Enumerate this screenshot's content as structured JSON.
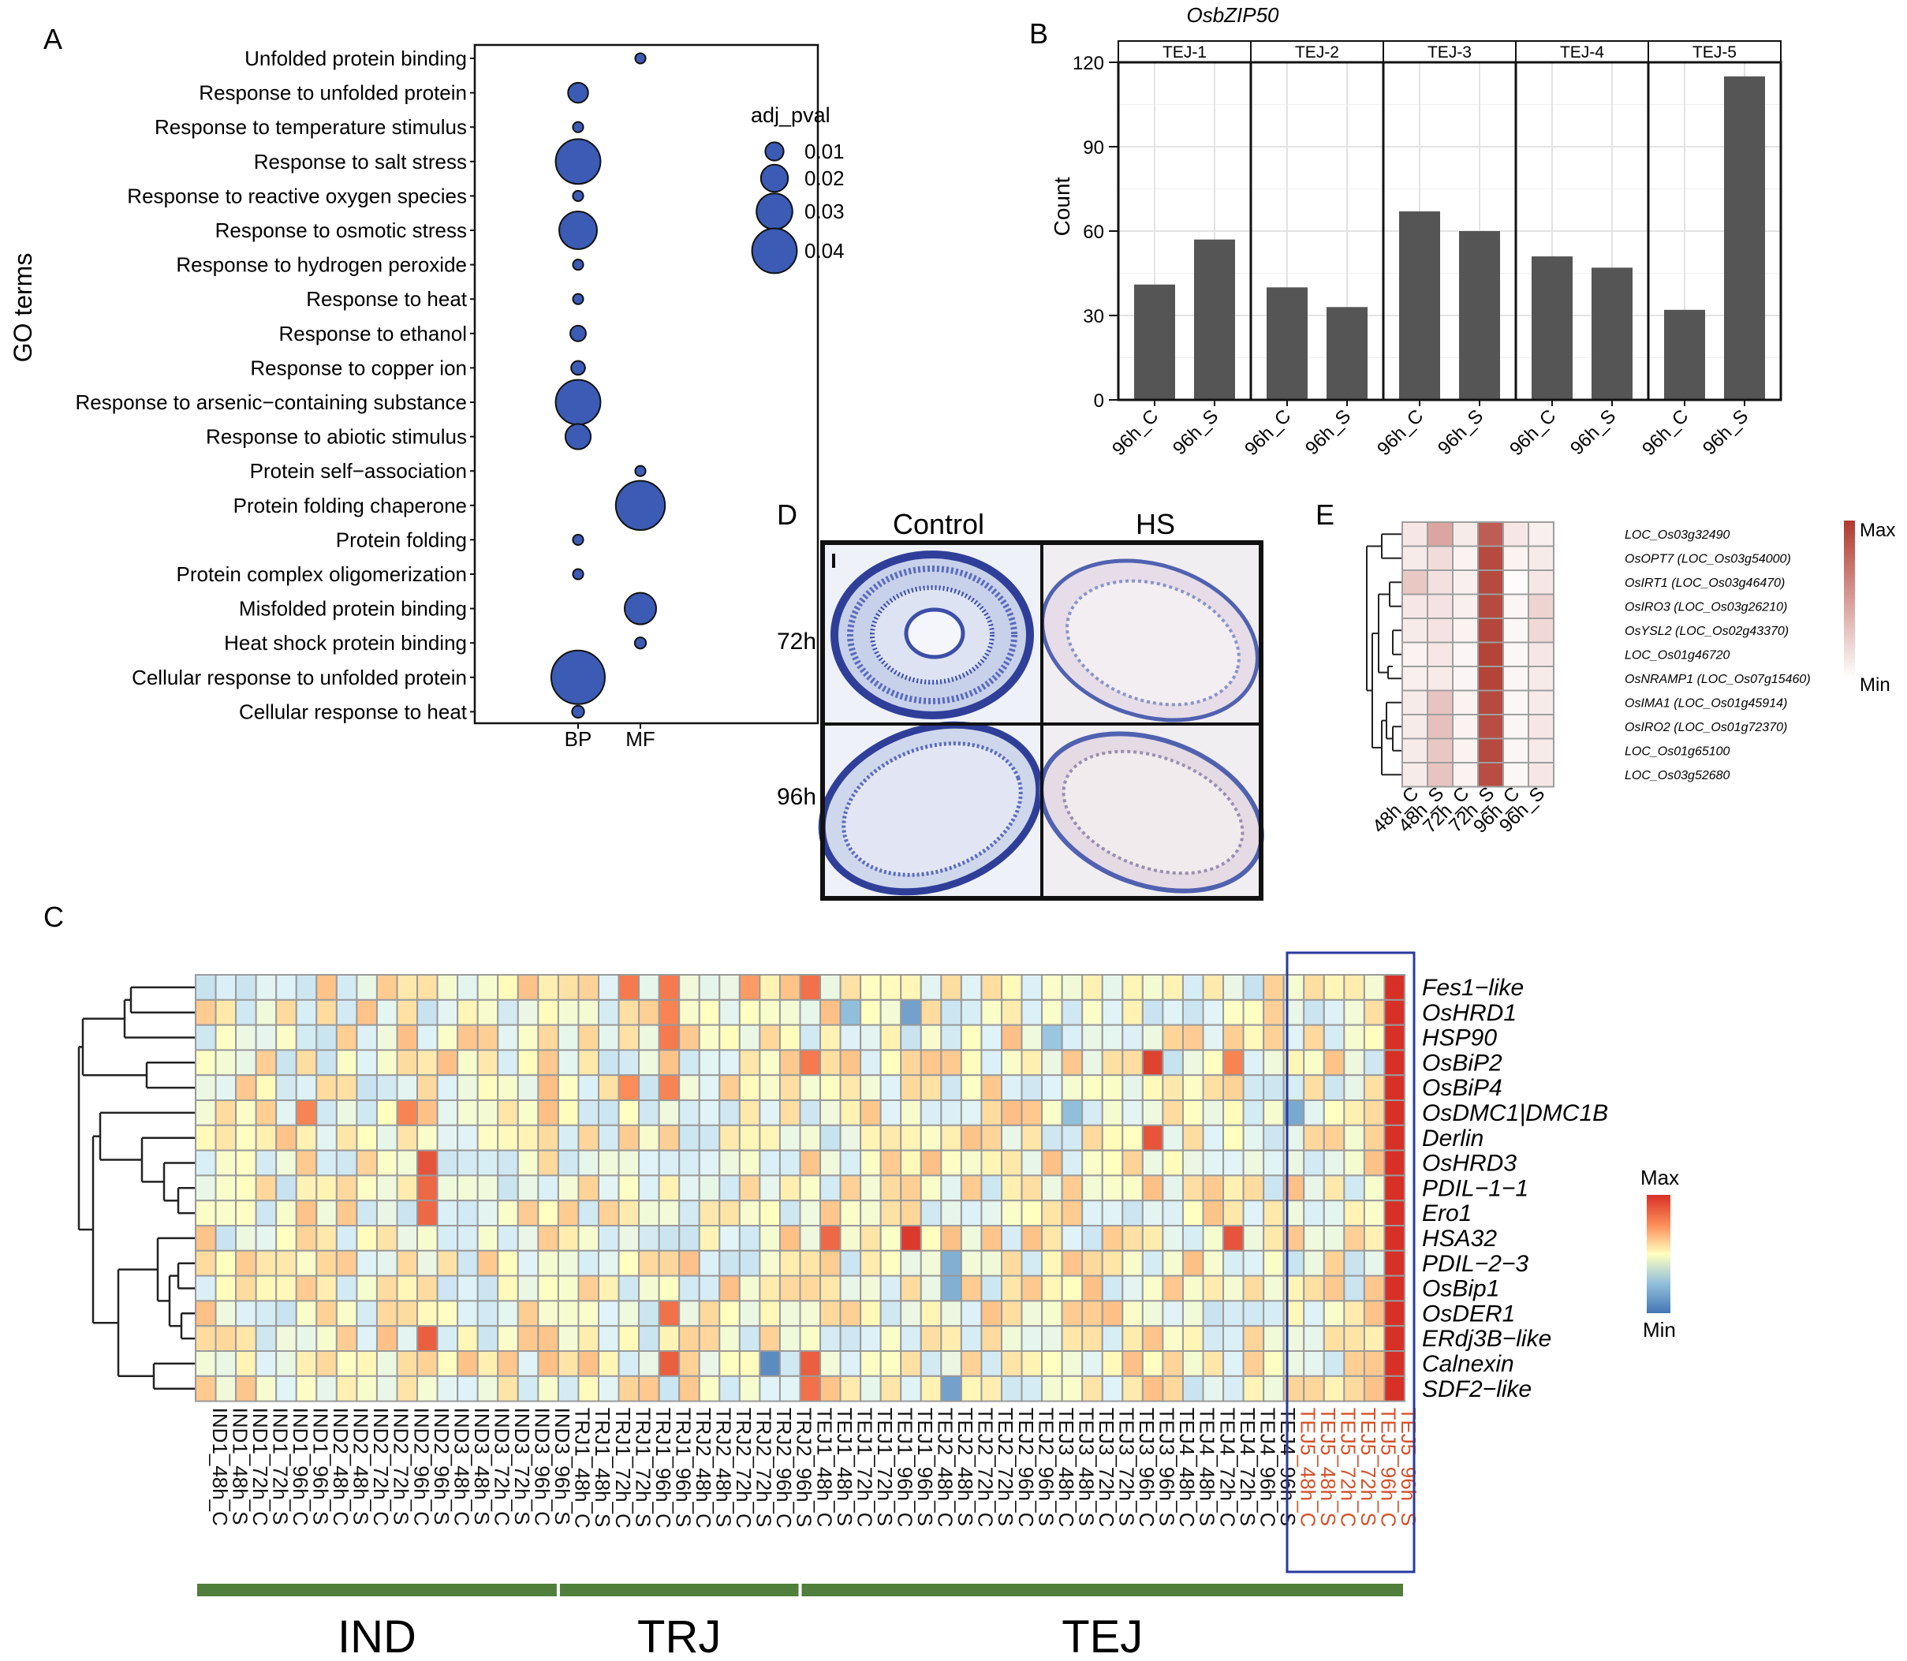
{
  "figure": {
    "panel_labels": [
      "A",
      "B",
      "C",
      "D",
      "E"
    ]
  },
  "chart_data": [
    {
      "panel": "A",
      "type": "scatter",
      "ylabel": "GO terms",
      "xlabel": "",
      "categories_x": [
        "BP",
        "MF"
      ],
      "terms": [
        "Unfolded protein binding",
        "Response to unfolded protein",
        "Response to temperature stimulus",
        "Response to salt stress",
        "Response to reactive oxygen species",
        "Response to osmotic stress",
        "Response to hydrogen peroxide",
        "Response to heat",
        "Response to ethanol",
        "Response to copper ion",
        "Response to arsenic−containing substance",
        "Response to abiotic stimulus",
        "Protein self−association",
        "Protein folding chaperone",
        "Protein folding",
        "Protein complex oligomerization",
        "Misfolded protein binding",
        "Heat shock protein binding",
        "Cellular response to unfolded protein",
        "Cellular response to heat"
      ],
      "points": [
        {
          "term": "Unfolded protein binding",
          "category": "MF",
          "adj_pval": 0.001
        },
        {
          "term": "Response to unfolded protein",
          "category": "BP",
          "adj_pval": 0.012
        },
        {
          "term": "Response to temperature stimulus",
          "category": "BP",
          "adj_pval": 0.001
        },
        {
          "term": "Response to salt stress",
          "category": "BP",
          "adj_pval": 0.04
        },
        {
          "term": "Response to reactive oxygen species",
          "category": "BP",
          "adj_pval": 0.001
        },
        {
          "term": "Response to osmotic stress",
          "category": "BP",
          "adj_pval": 0.032
        },
        {
          "term": "Response to hydrogen peroxide",
          "category": "BP",
          "adj_pval": 0.001
        },
        {
          "term": "Response to heat",
          "category": "BP",
          "adj_pval": 0.001
        },
        {
          "term": "Response to ethanol",
          "category": "BP",
          "adj_pval": 0.007
        },
        {
          "term": "Response to copper ion",
          "category": "BP",
          "adj_pval": 0.005
        },
        {
          "term": "Response to arsenic−containing substance",
          "category": "BP",
          "adj_pval": 0.04
        },
        {
          "term": "Response to abiotic stimulus",
          "category": "BP",
          "adj_pval": 0.018
        },
        {
          "term": "Protein self−association",
          "category": "MF",
          "adj_pval": 0.001
        },
        {
          "term": "Protein folding chaperone",
          "category": "MF",
          "adj_pval": 0.045
        },
        {
          "term": "Protein folding",
          "category": "BP",
          "adj_pval": 0.001
        },
        {
          "term": "Protein complex oligomerization",
          "category": "BP",
          "adj_pval": 0.001
        },
        {
          "term": "Misfolded protein binding",
          "category": "MF",
          "adj_pval": 0.025
        },
        {
          "term": "Heat shock protein binding",
          "category": "MF",
          "adj_pval": 0.002
        },
        {
          "term": "Cellular response to unfolded protein",
          "category": "BP",
          "adj_pval": 0.05
        },
        {
          "term": "Cellular response to heat",
          "category": "BP",
          "adj_pval": 0.003
        }
      ],
      "legend": {
        "title": "adj_pval",
        "entries": [
          "0.01",
          "0.02",
          "0.03",
          "0.04"
        ],
        "values": [
          0.01,
          0.02,
          0.03,
          0.04
        ]
      },
      "point_color": "#3b5bb5"
    },
    {
      "panel": "B",
      "type": "bar",
      "title": "OsbZIP50",
      "ylabel": "Count",
      "ylim": [
        0,
        120
      ],
      "yticks": [
        "0",
        "30",
        "60",
        "90",
        "120"
      ],
      "bar_color": "#555555",
      "facets": [
        {
          "name": "TEJ-1",
          "categories": [
            "96h_C",
            "96h_S"
          ],
          "values": [
            41,
            57
          ]
        },
        {
          "name": "TEJ-2",
          "categories": [
            "96h_C",
            "96h_S"
          ],
          "values": [
            40,
            33
          ]
        },
        {
          "name": "TEJ-3",
          "categories": [
            "96h_C",
            "96h_S"
          ],
          "values": [
            67,
            60
          ]
        },
        {
          "name": "TEJ-4",
          "categories": [
            "96h_C",
            "96h_S"
          ],
          "values": [
            51,
            47
          ]
        },
        {
          "name": "TEJ-5",
          "categories": [
            "96h_C",
            "96h_S"
          ],
          "values": [
            32,
            115
          ]
        }
      ]
    },
    {
      "panel": "C",
      "type": "heatmap",
      "rows": [
        "Fes1−like",
        "OsHRD1",
        "HSP90",
        "OsBiP2",
        "OsBiP4",
        "OsDMC1|DMC1B",
        "Derlin",
        "OsHRD3",
        "PDIL−1−1",
        "Ero1",
        "HSA32",
        "PDIL−2−3",
        "OsBip1",
        "OsDER1",
        "ERdj3B−like",
        "Calnexin",
        "SDF2−like"
      ],
      "columns": [
        "IND1_48h_C",
        "IND1_48h_S",
        "IND1_72h_C",
        "IND1_72h_S",
        "IND1_96h_C",
        "IND1_96h_S",
        "IND2_48h_C",
        "IND2_48h_S",
        "IND2_72h_C",
        "IND2_72h_S",
        "IND2_96h_C",
        "IND2_96h_S",
        "IND3_48h_C",
        "IND3_48h_S",
        "IND3_72h_C",
        "IND3_72h_S",
        "IND3_96h_C",
        "IND3_96h_S",
        "TRJ1_48h_C",
        "TRJ1_48h_S",
        "TRJ1_72h_C",
        "TRJ1_72h_S",
        "TRJ1_96h_C",
        "TRJ1_96h_S",
        "TRJ2_48h_C",
        "TRJ2_48h_S",
        "TRJ2_72h_C",
        "TRJ2_72h_S",
        "TRJ2_96h_C",
        "TRJ2_96h_S",
        "TEJ1_48h_C",
        "TEJ1_48h_S",
        "TEJ1_72h_C",
        "TEJ1_72h_S",
        "TEJ1_96h_C",
        "TEJ1_96h_S",
        "TEJ2_48h_C",
        "TEJ2_48h_S",
        "TEJ2_72h_C",
        "TEJ2_72h_S",
        "TEJ2_96h_C",
        "TEJ2_96h_S",
        "TEJ3_48h_C",
        "TEJ3_48h_S",
        "TEJ3_72h_C",
        "TEJ3_72h_S",
        "TEJ3_96h_C",
        "TEJ3_96h_S",
        "TEJ4_48h_C",
        "TEJ4_48h_S",
        "TEJ4_72h_C",
        "TEJ4_72h_S",
        "TEJ4_96h_C",
        "TEJ4_96h_S",
        "TEJ5_48h_C",
        "TEJ5_48h_S",
        "TEJ5_72h_C",
        "TEJ5_72h_S",
        "TEJ5_96h_C",
        "TEJ5_96h_S"
      ],
      "highlighted_columns": [
        "TEJ5_48h_C",
        "TEJ5_48h_S",
        "TEJ5_72h_C",
        "TEJ5_72h_S",
        "TEJ5_96h_C",
        "TEJ5_96h_S"
      ],
      "groups": [
        {
          "name": "IND",
          "from": 0,
          "to": 17
        },
        {
          "name": "TRJ",
          "from": 18,
          "to": 29
        },
        {
          "name": "TEJ",
          "from": 30,
          "to": 59
        }
      ],
      "legend": {
        "max_label": "Max",
        "min_label": "Min"
      },
      "scale": "relative expression (-1 = Min, 1 = Max)",
      "hotspots": [
        {
          "row": "*",
          "col": "TEJ5_96h_S",
          "value": 1.0
        },
        {
          "row": "Fes1−like",
          "col": "TRJ1_72h_S",
          "value": 0.6
        },
        {
          "row": "Fes1−like",
          "col": "TRJ1_96h_S",
          "value": 0.6
        },
        {
          "row": "Fes1−like",
          "col": "TEJ1_48h_C",
          "value": 0.65
        },
        {
          "row": "Fes1−like",
          "col": "TRJ2_72h_S",
          "value": 0.45
        },
        {
          "row": "OsHRD1",
          "col": "TEJ1_96h_S",
          "value": -0.7
        },
        {
          "row": "OsHRD1",
          "col": "TEJ1_72h_C",
          "value": -0.5
        },
        {
          "row": "OsHRD1",
          "col": "TRJ1_96h_S",
          "value": 0.55
        },
        {
          "row": "HSP90",
          "col": "TRJ1_96h_S",
          "value": 0.6
        },
        {
          "row": "HSP90",
          "col": "TEJ3_48h_C",
          "value": -0.45
        },
        {
          "row": "OsBiP2",
          "col": "TEJ3_96h_S",
          "value": 0.9
        },
        {
          "row": "OsBiP2",
          "col": "TEJ1_48h_C",
          "value": 0.6
        },
        {
          "row": "OsBiP2",
          "col": "TEJ4_72h_S",
          "value": 0.55
        },
        {
          "row": "OsBiP4",
          "col": "TRJ1_72h_S",
          "value": 0.5
        },
        {
          "row": "OsBiP4",
          "col": "TRJ1_96h_S",
          "value": 0.55
        },
        {
          "row": "OsDMC1|DMC1B",
          "col": "TEJ5_48h_C",
          "value": -0.65
        },
        {
          "row": "OsDMC1|DMC1B",
          "col": "TEJ3_48h_S",
          "value": -0.5
        },
        {
          "row": "OsDMC1|DMC1B",
          "col": "IND1_96h_S",
          "value": 0.55
        },
        {
          "row": "OsDMC1|DMC1B",
          "col": "IND2_96h_C",
          "value": 0.55
        },
        {
          "row": "Derlin",
          "col": "TEJ3_96h_S",
          "value": 0.8
        },
        {
          "row": "OsHRD3",
          "col": "IND2_96h_S",
          "value": 0.8
        },
        {
          "row": "PDIL−1−1",
          "col": "IND2_96h_S",
          "value": 0.7
        },
        {
          "row": "Ero1",
          "col": "IND2_96h_S",
          "value": 0.7
        },
        {
          "row": "HSA32",
          "col": "TEJ1_96h_S",
          "value": 0.95
        },
        {
          "row": "HSA32",
          "col": "TEJ1_48h_S",
          "value": 0.7
        },
        {
          "row": "HSA32",
          "col": "TEJ4_72h_S",
          "value": 0.8
        },
        {
          "row": "PDIL−2−3",
          "col": "TEJ2_48h_S",
          "value": -0.6
        },
        {
          "row": "OsBip1",
          "col": "TEJ2_48h_S",
          "value": -0.6
        },
        {
          "row": "OsDER1",
          "col": "TRJ1_96h_S",
          "value": 0.65
        },
        {
          "row": "ERdj3B−like",
          "col": "IND2_96h_S",
          "value": 0.75
        },
        {
          "row": "Calnexin",
          "col": "TRJ2_96h_C",
          "value": -0.85
        },
        {
          "row": "Calnexin",
          "col": "TEJ1_48h_C",
          "value": 0.75
        },
        {
          "row": "Calnexin",
          "col": "TRJ1_96h_S",
          "value": 0.75
        },
        {
          "row": "SDF2−like",
          "col": "TEJ2_48h_S",
          "value": -0.7
        },
        {
          "row": "SDF2−like",
          "col": "TEJ1_48h_C",
          "value": 0.65
        }
      ]
    },
    {
      "panel": "E",
      "type": "heatmap",
      "rows": [
        "LOC_Os03g32490",
        "OsOPT7 (LOC_Os03g54000)",
        "OsIRT1 (LOC_Os03g46470)",
        "OsIRO3 (LOC_Os03g26210)",
        "OsYSL2 (LOC_Os02g43370)",
        "LOC_Os01g46720",
        "OsNRAMP1 (LOC_Os07g15460)",
        "OsIMA1  (LOC_Os01g45914)",
        "OsIRO2 (LOC_Os01g72370)",
        "LOC_Os01g65100",
        "LOC_Os03g52680"
      ],
      "columns": [
        "48h_C",
        "48h_S",
        "72h_C",
        "72h_S",
        "96h_C",
        "96h_S"
      ],
      "values": [
        [
          0.12,
          0.45,
          0.1,
          0.82,
          0.12,
          0.08
        ],
        [
          0.1,
          0.18,
          0.06,
          0.92,
          0.06,
          0.1
        ],
        [
          0.28,
          0.15,
          0.08,
          0.92,
          0.02,
          0.12
        ],
        [
          0.12,
          0.14,
          0.08,
          0.92,
          0.05,
          0.22
        ],
        [
          0.1,
          0.14,
          0.06,
          0.94,
          0.04,
          0.2
        ],
        [
          0.06,
          0.12,
          0.05,
          0.95,
          0.04,
          0.12
        ],
        [
          0.08,
          0.1,
          0.05,
          0.95,
          0.05,
          0.1
        ],
        [
          0.1,
          0.3,
          0.06,
          0.92,
          0.04,
          0.1
        ],
        [
          0.1,
          0.32,
          0.06,
          0.9,
          0.05,
          0.12
        ],
        [
          0.1,
          0.28,
          0.06,
          0.92,
          0.05,
          0.1
        ],
        [
          0.1,
          0.3,
          0.06,
          0.9,
          0.04,
          0.12
        ]
      ],
      "legend": {
        "max_label": "Max",
        "min_label": "Min"
      }
    }
  ],
  "panel_d": {
    "columns": [
      "Control",
      "HS"
    ],
    "rows": [
      "72h",
      "96h"
    ],
    "scale_marker": "I"
  },
  "panel_c_groups": [
    "IND",
    "TRJ",
    "TEJ"
  ]
}
